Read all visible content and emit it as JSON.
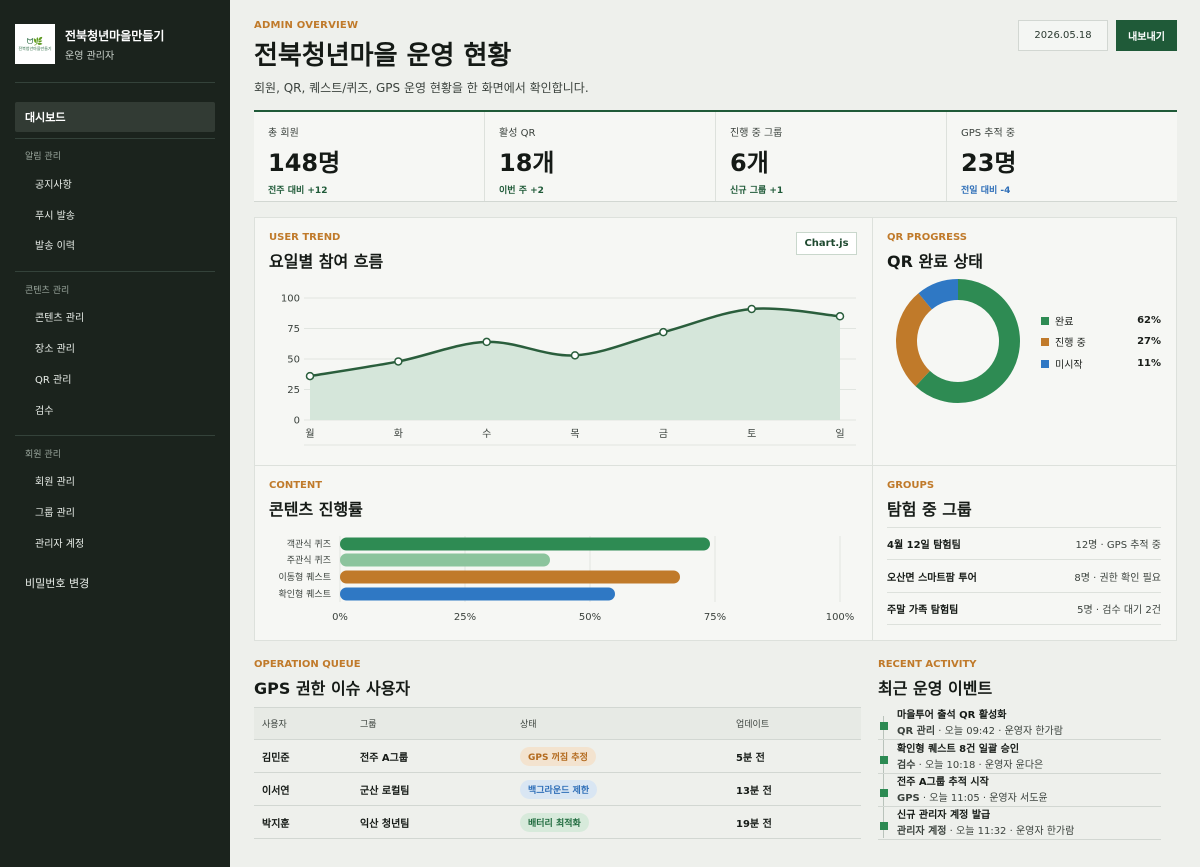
{
  "sidebar": {
    "brand_name": "전북청년마을만들기",
    "brand_sub": "운영 관리자",
    "logo_mark": "ᗢ🌿",
    "logo_tiny": "전북청년마을만들기",
    "dashboard": "대시보드",
    "groups": [
      {
        "title": "알림 관리",
        "items": [
          "공지사항",
          "푸시 발송",
          "발송 이력"
        ]
      },
      {
        "title": "콘텐츠 관리",
        "items": [
          "콘텐츠 관리",
          "장소 관리",
          "QR 관리",
          "검수"
        ]
      },
      {
        "title": "회원 관리",
        "items": [
          "회원 관리",
          "그룹 관리",
          "관리자 계정"
        ]
      }
    ],
    "password_change": "비밀번호 변경"
  },
  "header": {
    "eyebrow": "ADMIN OVERVIEW",
    "title": "전북청년마을 운영 현황",
    "description": "회원, QR, 퀘스트/퀴즈, GPS 운영 현황을 한 화면에서 확인합니다.",
    "date": "2026.05.18",
    "export_label": "내보내기"
  },
  "stats": [
    {
      "label": "총 회원",
      "value": "148명",
      "delta": "전주 대비 +12",
      "trend": "up"
    },
    {
      "label": "활성 QR",
      "value": "18개",
      "delta": "이번 주 +2",
      "trend": "up"
    },
    {
      "label": "진행 중 그룹",
      "value": "6개",
      "delta": "신규 그룹 +1",
      "trend": "up"
    },
    {
      "label": "GPS 추적 중",
      "value": "23명",
      "delta": "전일 대비 -4",
      "trend": "down"
    }
  ],
  "user_trend": {
    "eyebrow": "USER TREND",
    "title": "요일별 참여 흐름",
    "chip": "Chart.js"
  },
  "qr_progress": {
    "eyebrow": "QR PROGRESS",
    "title": "QR 완료 상태"
  },
  "content_panel": {
    "eyebrow": "CONTENT",
    "title": "콘텐츠 진행률"
  },
  "groups_panel": {
    "eyebrow": "GROUPS",
    "title": "탐험 중 그룹",
    "rows": [
      {
        "name": "4월 12일 탐험팀",
        "meta": "12명 · GPS 추적 중"
      },
      {
        "name": "오산면 스마트팜 투어",
        "meta": "8명 · 권한 확인 필요"
      },
      {
        "name": "주말 가족 탐험팀",
        "meta": "5명 · 검수 대기 2건"
      }
    ]
  },
  "operation_queue": {
    "eyebrow": "OPERATION QUEUE",
    "title": "GPS 권한 이슈 사용자",
    "headers": [
      "사용자",
      "그룹",
      "상태",
      "업데이트"
    ],
    "rows": [
      {
        "user": "김민준",
        "group": "전주 A그룹",
        "status": "GPS 꺼짐 추정",
        "status_bg": "#f3e3cf",
        "status_fg": "#b36a1e",
        "updated": "5분 전"
      },
      {
        "user": "이서연",
        "group": "군산 로컬팀",
        "status": "백그라운드 제한",
        "status_bg": "#d9e6f3",
        "status_fg": "#2f6fb8",
        "updated": "13분 전"
      },
      {
        "user": "박지훈",
        "group": "익산 청년팀",
        "status": "배터리 최적화",
        "status_bg": "#d7eadb",
        "status_fg": "#1f6b3e",
        "updated": "19분 전"
      }
    ]
  },
  "recent_activity": {
    "eyebrow": "RECENT ACTIVITY",
    "title": "최근 운영 이벤트",
    "items": [
      {
        "title": "마을투어 출석 QR 활성화",
        "category": "QR 관리",
        "meta": " · 오늘 09:42 · 운영자 한가람"
      },
      {
        "title": "확인형 퀘스트 8건 일괄 승인",
        "category": "검수",
        "meta": " · 오늘 10:18 · 운영자 윤다은"
      },
      {
        "title": "전주 A그룹 추적 시작",
        "category": "GPS",
        "meta": " · 오늘 11:05 · 운영자 서도윤"
      },
      {
        "title": "신규 관리자 계정 발급",
        "category": "관리자 계정",
        "meta": " · 오늘 11:32 · 운영자 한가람"
      }
    ]
  },
  "chart_data": [
    {
      "type": "area",
      "title": "요일별 참여 흐름",
      "categories": [
        "월",
        "화",
        "수",
        "목",
        "금",
        "토",
        "일"
      ],
      "values": [
        36,
        48,
        64,
        53,
        72,
        91,
        85
      ],
      "ylim": [
        0,
        100
      ],
      "yticks": [
        "0",
        "25",
        "50",
        "75",
        "100"
      ],
      "color": "#2a5e3c",
      "fill": "#d5e6da",
      "grid": true
    },
    {
      "type": "pie",
      "title": "QR 완료 상태",
      "labels": [
        "완료",
        "진행 중",
        "미시작"
      ],
      "values": [
        62,
        27,
        11
      ],
      "value_labels": [
        "62%",
        "27%",
        "11%"
      ],
      "colors": [
        "#2e8b53",
        "#c07a2a",
        "#2f78c4"
      ],
      "legend": "right"
    },
    {
      "type": "bar",
      "orientation": "horizontal",
      "title": "콘텐츠 진행률",
      "categories": [
        "객관식 퀴즈",
        "주관식 퀴즈",
        "이동형 퀘스트",
        "확인형 퀘스트"
      ],
      "values": [
        74,
        42,
        68,
        55
      ],
      "colors": [
        "#2e8b53",
        "#8cc49d",
        "#c07a2a",
        "#2f78c4"
      ],
      "xlim": [
        0,
        100
      ],
      "xticks": [
        "0%",
        "25%",
        "50%",
        "75%",
        "100%"
      ]
    }
  ]
}
